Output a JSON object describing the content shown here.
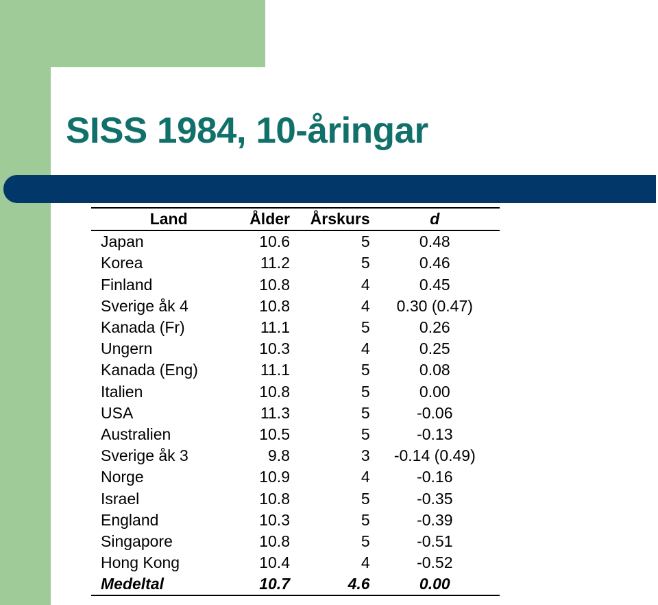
{
  "slide": {
    "title": "SISS 1984, 10-åringar"
  },
  "table": {
    "headers": {
      "land": "Land",
      "alder": "Ålder",
      "arskurs": "Årskurs",
      "d": "d"
    },
    "rows": [
      {
        "land": "Japan",
        "alder": "10.6",
        "arskurs": "5",
        "d": "0.48"
      },
      {
        "land": "Korea",
        "alder": "11.2",
        "arskurs": "5",
        "d": "0.46"
      },
      {
        "land": "Finland",
        "alder": "10.8",
        "arskurs": "4",
        "d": "0.45"
      },
      {
        "land": "Sverige åk 4",
        "alder": "10.8",
        "arskurs": "4",
        "d": "0.30 (0.47)"
      },
      {
        "land": "Kanada (Fr)",
        "alder": "11.1",
        "arskurs": "5",
        "d": "0.26"
      },
      {
        "land": "Ungern",
        "alder": "10.3",
        "arskurs": "4",
        "d": "0.25"
      },
      {
        "land": "Kanada (Eng)",
        "alder": "11.1",
        "arskurs": "5",
        "d": "0.08"
      },
      {
        "land": "Italien",
        "alder": "10.8",
        "arskurs": "5",
        "d": "0.00"
      },
      {
        "land": "USA",
        "alder": "11.3",
        "arskurs": "5",
        "d": "-0.06"
      },
      {
        "land": "Australien",
        "alder": "10.5",
        "arskurs": "5",
        "d": "-0.13"
      },
      {
        "land": "Sverige åk 3",
        "alder": "9.8",
        "arskurs": "3",
        "d": "-0.14 (0.49)"
      },
      {
        "land": "Norge",
        "alder": "10.9",
        "arskurs": "4",
        "d": "-0.16"
      },
      {
        "land": "Israel",
        "alder": "10.8",
        "arskurs": "5",
        "d": "-0.35"
      },
      {
        "land": "England",
        "alder": "10.3",
        "arskurs": "5",
        "d": "-0.39"
      },
      {
        "land": "Singapore",
        "alder": "10.8",
        "arskurs": "5",
        "d": "-0.51"
      },
      {
        "land": "Hong Kong",
        "alder": "10.4",
        "arskurs": "4",
        "d": "-0.52"
      }
    ],
    "footer": {
      "land": "Medeltal",
      "alder": "10.7",
      "arskurs": "4.6",
      "d": "0.00"
    }
  }
}
